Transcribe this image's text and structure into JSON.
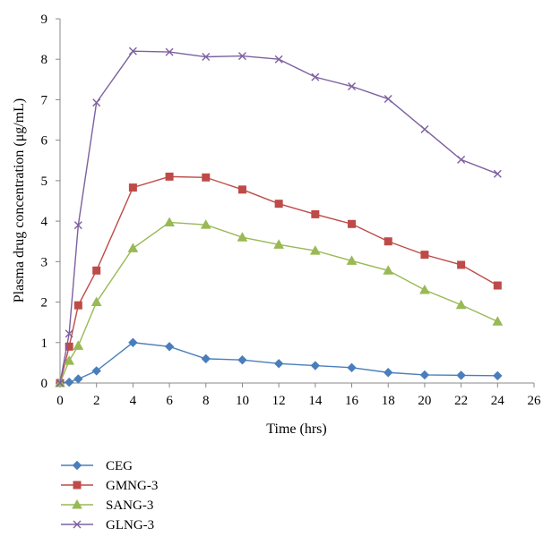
{
  "chart_data": {
    "type": "line",
    "title": "",
    "xlabel": "Time (hrs)",
    "ylabel": "Plasma drug concentration (μg/mL)",
    "xlim": [
      0,
      26
    ],
    "ylim": [
      0,
      9
    ],
    "x_ticks": [
      0,
      2,
      4,
      6,
      8,
      10,
      12,
      14,
      16,
      18,
      20,
      22,
      24,
      26
    ],
    "y_ticks": [
      0,
      1,
      2,
      3,
      4,
      5,
      6,
      7,
      8,
      9
    ],
    "grid": false,
    "legend_position": "bottom-left",
    "series": [
      {
        "name": "CEG",
        "color": "#4a7ebb",
        "marker": "diamond",
        "x": [
          0,
          0.5,
          1,
          2,
          4,
          6,
          8,
          10,
          12,
          14,
          16,
          18,
          20,
          22,
          24
        ],
        "y": [
          0,
          0.02,
          0.1,
          0.3,
          1.0,
          0.9,
          0.6,
          0.57,
          0.48,
          0.43,
          0.38,
          0.26,
          0.2,
          0.19,
          0.18
        ]
      },
      {
        "name": "GMNG-3",
        "color": "#be4b48",
        "marker": "square",
        "x": [
          0,
          0.5,
          1,
          2,
          4,
          6,
          8,
          10,
          12,
          14,
          16,
          18,
          20,
          22,
          24
        ],
        "y": [
          0,
          0.9,
          1.92,
          2.78,
          4.83,
          5.1,
          5.08,
          4.78,
          4.43,
          4.17,
          3.93,
          3.5,
          3.17,
          2.92,
          2.41
        ]
      },
      {
        "name": "SANG-3",
        "color": "#98b954",
        "marker": "triangle",
        "x": [
          0,
          0.5,
          1,
          2,
          4,
          6,
          8,
          10,
          12,
          14,
          16,
          18,
          20,
          22,
          24
        ],
        "y": [
          0,
          0.55,
          0.92,
          2.0,
          3.33,
          3.97,
          3.91,
          3.6,
          3.42,
          3.27,
          3.02,
          2.78,
          2.3,
          1.93,
          1.52
        ]
      },
      {
        "name": "GLNG-3",
        "color": "#7d60a0",
        "marker": "x",
        "x": [
          0,
          0.5,
          1,
          2,
          4,
          6,
          8,
          10,
          12,
          14,
          16,
          18,
          20,
          22,
          24
        ],
        "y": [
          0,
          1.22,
          3.9,
          6.93,
          8.2,
          8.18,
          8.06,
          8.08,
          8.0,
          7.56,
          7.33,
          7.02,
          6.27,
          5.52,
          5.17
        ]
      }
    ]
  }
}
